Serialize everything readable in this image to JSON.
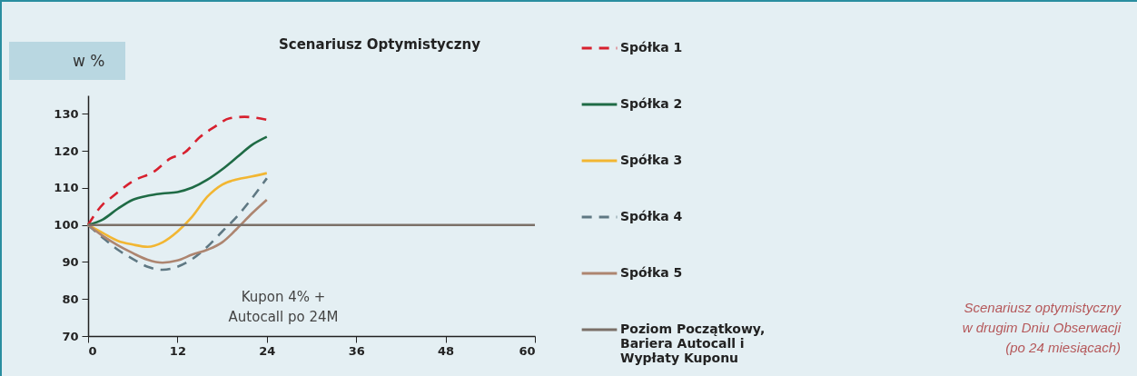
{
  "chart_data": {
    "type": "line",
    "title": "Scenariusz Optymistyczny",
    "ylabel": "w %",
    "annotations": [
      "Kupon 4% + Autocall po 24M",
      "Scenariusz optymistyczny w drugim Dniu Obserwacji (po 24 miesiącach)"
    ],
    "xlim": [
      0,
      60
    ],
    "xticks": [
      0,
      12,
      24,
      36,
      48,
      60
    ],
    "ylim": [
      70,
      135
    ],
    "yticks": [
      70,
      80,
      90,
      100,
      110,
      120,
      130
    ],
    "grid": false,
    "legend": "right",
    "series": [
      {
        "name": "Spółka 1",
        "color": "#d7202e",
        "line_style": "dashed",
        "x": [
          0,
          2,
          3,
          6,
          9,
          11,
          13,
          15,
          17,
          19,
          21,
          24
        ],
        "values": [
          100,
          105.6,
          107.2,
          111.8,
          114.6,
          117.9,
          119.6,
          123.7,
          126.5,
          128.8,
          129.2,
          128.4
        ]
      },
      {
        "name": "Spółka 2",
        "color": "#1f6b45",
        "line_style": "solid",
        "x": [
          0,
          2,
          4,
          6,
          8,
          10,
          12,
          14,
          16,
          18,
          20,
          22,
          24
        ],
        "values": [
          100,
          101.5,
          104.4,
          106.8,
          107.9,
          108.5,
          108.9,
          110.1,
          112.2,
          115,
          118.3,
          121.6,
          123.8
        ]
      },
      {
        "name": "Spółka 3",
        "color": "#f2b632",
        "line_style": "solid",
        "x": [
          0,
          2,
          4,
          6,
          8,
          10,
          12,
          14,
          16,
          18,
          20,
          22,
          24
        ],
        "values": [
          100,
          97.8,
          95.7,
          94.7,
          94.1,
          95.3,
          98.2,
          102.3,
          107.6,
          110.9,
          112.3,
          113.1,
          114
        ]
      },
      {
        "name": "Spółka 4",
        "color": "#5f7883",
        "line_style": "dashed",
        "x": [
          0,
          2,
          4,
          6,
          8,
          10,
          12,
          14,
          16,
          18,
          20,
          22,
          24
        ],
        "values": [
          100,
          96.5,
          93.3,
          90.8,
          88.7,
          87.9,
          88.7,
          90.8,
          94.1,
          98.2,
          102.3,
          107.2,
          112.6
        ]
      },
      {
        "name": "Spółka 5",
        "color": "#ad8570",
        "line_style": "solid",
        "x": [
          0,
          2,
          4,
          6,
          8,
          10,
          12,
          14,
          16,
          18,
          20,
          22,
          24
        ],
        "values": [
          100,
          97,
          94.5,
          92.4,
          90.6,
          89.8,
          90.4,
          92,
          93.3,
          95.3,
          99,
          103.1,
          106.8
        ]
      },
      {
        "name": "Poziom Początkowy, Bariera Autocall i Wypłaty Kuponu",
        "color": "#7b7068",
        "line_style": "solid",
        "x": [
          0,
          60
        ],
        "values": [
          100,
          100
        ]
      }
    ]
  }
}
